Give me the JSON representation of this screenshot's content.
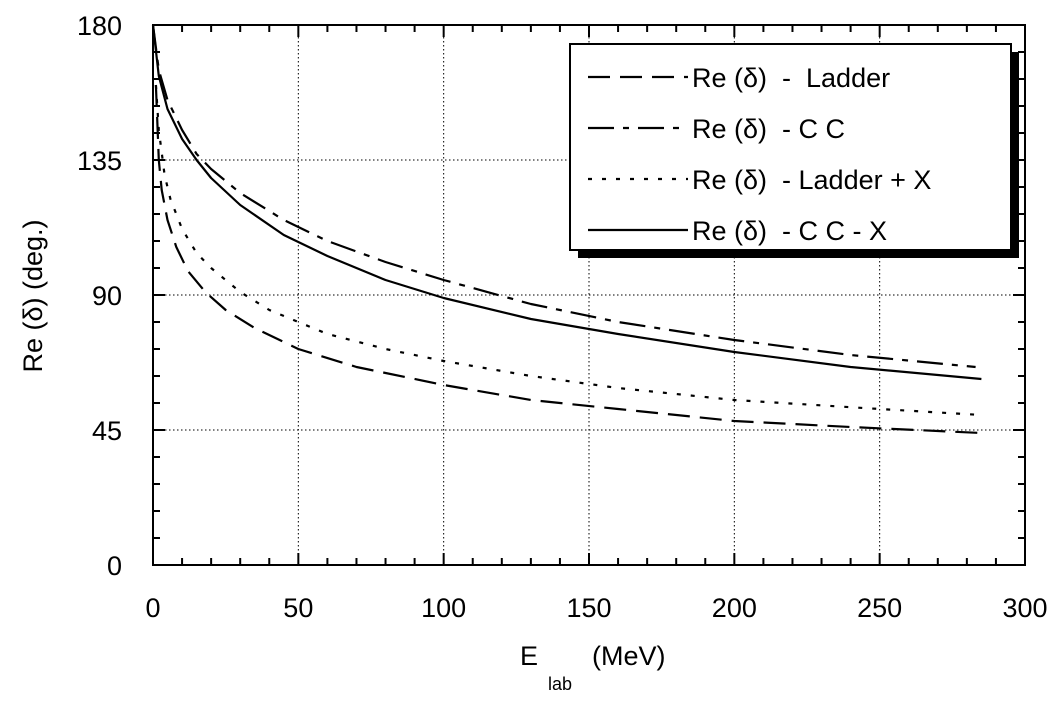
{
  "chart_data": {
    "type": "line",
    "xlabel": {
      "main": "E",
      "sub": "lab",
      "unit": "(MeV)"
    },
    "ylabel": "Re (δ)  (deg.)",
    "xlim": [
      0,
      300
    ],
    "ylim": [
      0,
      180
    ],
    "xticks": [
      0,
      50,
      100,
      150,
      200,
      250,
      300
    ],
    "yticks": [
      0,
      45,
      90,
      135,
      180
    ],
    "xtick_labels": [
      "0",
      "50",
      "100",
      "150",
      "200",
      "250",
      "300"
    ],
    "ytick_labels": [
      "0",
      "45",
      "90",
      "135",
      "180"
    ],
    "grid": {
      "x": true,
      "y": true,
      "style": "dotted"
    },
    "legend": {
      "position": "top-right"
    },
    "series": [
      {
        "name": "Re (δ)  -  Ladder",
        "dash": "long-dash",
        "x": [
          1,
          2,
          3,
          5,
          8,
          12,
          18,
          25,
          35,
          50,
          70,
          100,
          130,
          160,
          200,
          240,
          285
        ],
        "y": [
          160,
          135,
          125,
          115,
          106,
          98,
          91,
          85,
          79,
          72,
          66,
          60,
          55,
          52,
          48,
          46,
          44
        ]
      },
      {
        "name": "Re (δ)  - C C",
        "dash": "dash-dot",
        "x": [
          0,
          2,
          5,
          10,
          15,
          20,
          30,
          45,
          60,
          80,
          100,
          130,
          160,
          200,
          240,
          283
        ],
        "y": [
          180,
          165,
          155,
          145,
          137,
          132,
          124,
          115,
          108,
          101,
          95,
          87,
          81,
          75,
          70,
          66
        ]
      },
      {
        "name": "Re (δ)  - Ladder + X",
        "dash": "dotted",
        "x": [
          1,
          2,
          4,
          6,
          10,
          15,
          20,
          30,
          40,
          60,
          80,
          100,
          130,
          160,
          200,
          250,
          285
        ],
        "y": [
          160,
          145,
          130,
          122,
          112,
          104,
          99,
          91,
          85,
          77,
          72,
          68,
          63,
          59,
          55,
          52,
          50
        ]
      },
      {
        "name": "Re (δ)  - C C - X",
        "dash": "solid",
        "x": [
          0,
          2,
          5,
          10,
          15,
          20,
          30,
          45,
          60,
          80,
          100,
          130,
          160,
          200,
          240,
          285
        ],
        "y": [
          180,
          163,
          152,
          142,
          135,
          129,
          120,
          110,
          103,
          95,
          89,
          82,
          77,
          71,
          66,
          62
        ]
      }
    ]
  }
}
